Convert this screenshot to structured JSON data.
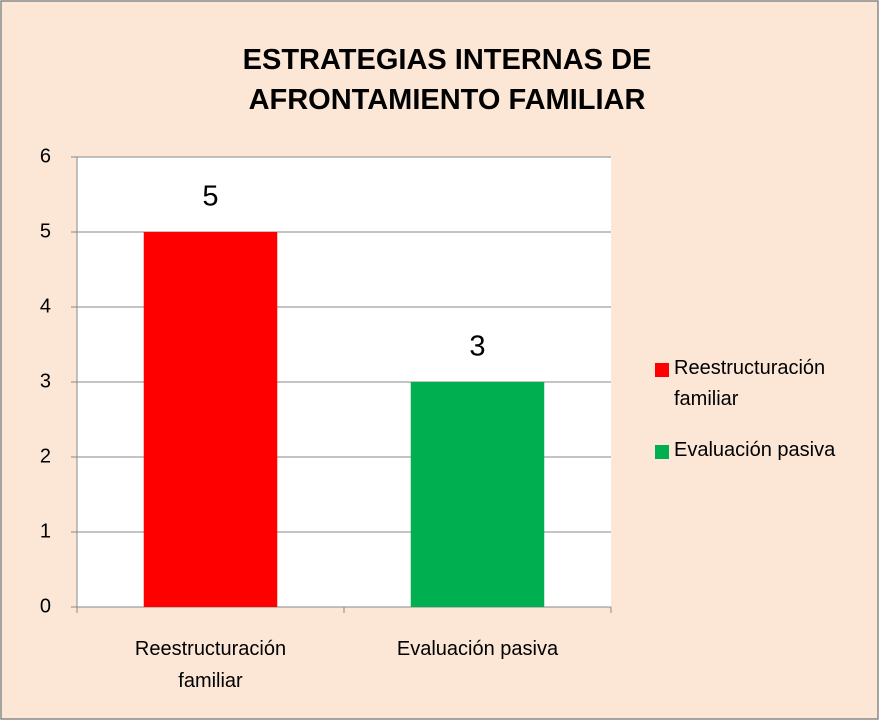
{
  "chart_data": {
    "type": "bar",
    "title": "ESTRATEGIAS INTERNAS DE AFRONTAMIENTO FAMILIAR",
    "categories": [
      "Reestructuración familiar",
      "Evaluación pasiva"
    ],
    "values": [
      5,
      3
    ],
    "colors": [
      "#ff0000",
      "#00b050"
    ],
    "ylim": [
      0,
      6
    ],
    "yticks": [
      0,
      1,
      2,
      3,
      4,
      5,
      6
    ],
    "grid": true,
    "legend": "right",
    "data_labels": true
  }
}
